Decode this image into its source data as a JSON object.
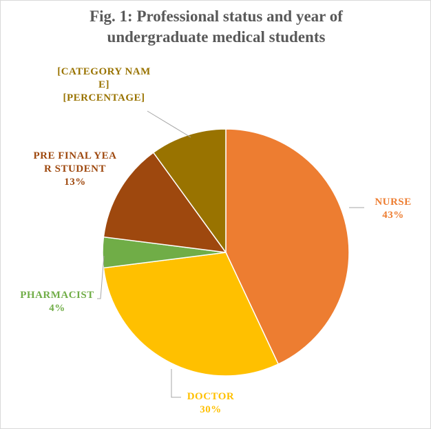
{
  "chart_data": {
    "type": "pie",
    "title": "Fig. 1: Professional status and year of undergraduate medical students",
    "categories": [
      "NURSE",
      "DOCTOR",
      "PHARMACIST",
      "PRE FINAL YEAR STUDENT",
      "[CATEGORY NAME]"
    ],
    "values": [
      43,
      30,
      4,
      13,
      10
    ],
    "value_labels": [
      "43%",
      "30%",
      "4%",
      "13%",
      "[PERCENTAGE]"
    ],
    "colors": [
      "#ED7D31",
      "#FFC000",
      "#70AD47",
      "#9E480E",
      "#997300"
    ]
  }
}
